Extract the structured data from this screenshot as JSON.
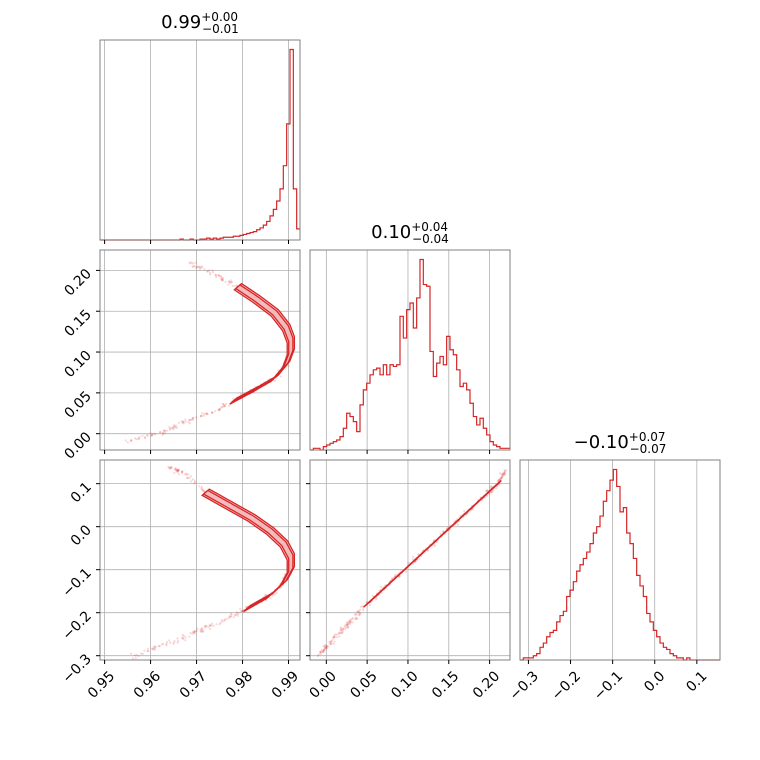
{
  "chart_data": [
    {
      "type": "histogram",
      "parameter_index": 0,
      "title": {
        "value": "0.99",
        "plus": "+0.00",
        "minus": "−0.01"
      },
      "xlim": [
        0.949,
        0.9925
      ],
      "xticks": [
        "0.95",
        "0.96",
        "0.97",
        "0.98",
        "0.99"
      ],
      "xtick_values": [
        0.95,
        0.96,
        0.97,
        0.98,
        0.99
      ],
      "bin_start": 0.949,
      "bin_width": 0.000725,
      "counts": [
        0,
        0,
        0,
        0,
        0,
        0,
        0,
        0,
        0,
        0,
        0,
        0,
        0,
        0,
        0,
        0,
        0,
        0,
        0,
        0,
        0,
        0,
        0,
        0,
        1,
        0,
        0,
        1,
        0,
        0,
        1,
        1,
        2,
        1,
        2,
        1,
        2,
        3,
        3,
        3,
        4,
        4,
        5,
        6,
        7,
        8,
        9,
        11,
        13,
        16,
        20,
        26,
        33,
        42,
        55,
        80,
        125,
        205,
        55,
        12
      ]
    },
    {
      "type": "histogram",
      "parameter_index": 1,
      "title": {
        "value": "0.10",
        "plus": "+0.04",
        "minus": "−0.04"
      },
      "xlim": [
        -0.02,
        0.225
      ],
      "xticks": [
        "0.00",
        "0.05",
        "0.10",
        "0.15",
        "0.20"
      ],
      "xtick_values": [
        0.0,
        0.05,
        0.1,
        0.15,
        0.2
      ],
      "bin_start": -0.02,
      "bin_width": 0.004083,
      "counts": [
        0,
        1,
        1,
        0,
        2,
        3,
        4,
        5,
        6,
        8,
        13,
        22,
        20,
        17,
        11,
        27,
        36,
        40,
        45,
        48,
        49,
        45,
        51,
        45,
        51,
        50,
        51,
        80,
        67,
        84,
        88,
        73,
        91,
        114,
        99,
        98,
        59,
        44,
        52,
        56,
        51,
        68,
        60,
        57,
        48,
        38,
        40,
        36,
        28,
        20,
        15,
        19,
        13,
        9,
        5,
        3,
        2,
        1,
        1,
        1
      ]
    },
    {
      "type": "histogram",
      "parameter_index": 2,
      "title": {
        "value": "−0.10",
        "plus": "+0.07",
        "minus": "−0.07"
      },
      "xlim": [
        -0.32,
        0.155
      ],
      "xticks": [
        "−0.3",
        "−0.2",
        "−0.1",
        "0.0",
        "0.1"
      ],
      "xtick_values": [
        -0.3,
        -0.2,
        -0.1,
        0.0,
        0.1
      ],
      "bin_start": -0.32,
      "bin_width": 0.007917,
      "counts": [
        0,
        1,
        1,
        1,
        2,
        3,
        6,
        8,
        11,
        13,
        14,
        18,
        21,
        23,
        30,
        33,
        37,
        42,
        45,
        48,
        51,
        55,
        60,
        63,
        68,
        75,
        80,
        85,
        90,
        82,
        70,
        72,
        60,
        55,
        48,
        40,
        35,
        30,
        22,
        18,
        14,
        11,
        8,
        6,
        5,
        3,
        2,
        1,
        1,
        0,
        1,
        0,
        0,
        0,
        0,
        0,
        0,
        0,
        0,
        0
      ]
    },
    {
      "type": "scatter",
      "x_parameter_index": 0,
      "y_parameter_index": 1,
      "xlim": [
        0.949,
        0.9925
      ],
      "ylim": [
        -0.02,
        0.225
      ],
      "yticks": [
        "0.00",
        "0.05",
        "0.10",
        "0.15",
        "0.20"
      ],
      "ytick_values": [
        0.0,
        0.05,
        0.1,
        0.15,
        0.2
      ],
      "ridge": [
        [
          0.955,
          -0.01
        ],
        [
          0.962,
          0.0
        ],
        [
          0.968,
          0.015
        ],
        [
          0.974,
          0.028
        ],
        [
          0.978,
          0.04
        ],
        [
          0.983,
          0.055
        ],
        [
          0.987,
          0.068
        ],
        [
          0.9895,
          0.085
        ],
        [
          0.9905,
          0.1
        ],
        [
          0.9905,
          0.115
        ],
        [
          0.9895,
          0.13
        ],
        [
          0.987,
          0.148
        ],
        [
          0.983,
          0.165
        ],
        [
          0.979,
          0.18
        ],
        [
          0.974,
          0.195
        ],
        [
          0.968,
          0.21
        ]
      ]
    },
    {
      "type": "scatter",
      "x_parameter_index": 0,
      "y_parameter_index": 2,
      "xlim": [
        0.949,
        0.9925
      ],
      "ylim": [
        -0.31,
        0.155
      ],
      "yticks": [
        "−0.3",
        "−0.2",
        "−0.1",
        "0.0",
        "0.1"
      ],
      "ytick_values": [
        -0.3,
        -0.2,
        -0.1,
        0.0,
        0.1
      ],
      "xticks": [
        "0.95",
        "0.96",
        "0.97",
        "0.98",
        "0.99"
      ],
      "xtick_values": [
        0.95,
        0.96,
        0.97,
        0.98,
        0.99
      ],
      "ridge": [
        [
          0.956,
          -0.3
        ],
        [
          0.963,
          -0.275
        ],
        [
          0.97,
          -0.245
        ],
        [
          0.976,
          -0.22
        ],
        [
          0.981,
          -0.19
        ],
        [
          0.986,
          -0.16
        ],
        [
          0.989,
          -0.13
        ],
        [
          0.9905,
          -0.1
        ],
        [
          0.9905,
          -0.07
        ],
        [
          0.989,
          -0.04
        ],
        [
          0.986,
          -0.01
        ],
        [
          0.982,
          0.02
        ],
        [
          0.977,
          0.05
        ],
        [
          0.972,
          0.08
        ],
        [
          0.968,
          0.12
        ],
        [
          0.964,
          0.14
        ]
      ]
    },
    {
      "type": "scatter",
      "x_parameter_index": 1,
      "y_parameter_index": 2,
      "xlim": [
        -0.02,
        0.225
      ],
      "ylim": [
        -0.31,
        0.155
      ],
      "xticks": [
        "0.00",
        "0.05",
        "0.10",
        "0.15",
        "0.20"
      ],
      "xtick_values": [
        0.0,
        0.05,
        0.1,
        0.15,
        0.2
      ],
      "ridge": [
        [
          -0.01,
          -0.3
        ],
        [
          0.01,
          -0.26
        ],
        [
          0.03,
          -0.22
        ],
        [
          0.05,
          -0.18
        ],
        [
          0.07,
          -0.145
        ],
        [
          0.09,
          -0.11
        ],
        [
          0.11,
          -0.075
        ],
        [
          0.13,
          -0.04
        ],
        [
          0.15,
          -0.005
        ],
        [
          0.17,
          0.03
        ],
        [
          0.19,
          0.065
        ],
        [
          0.21,
          0.1
        ],
        [
          0.22,
          0.13
        ]
      ]
    }
  ],
  "colors": {
    "series": "#d62728",
    "contour_fill": "#f4b8b8",
    "grid": "#b0b0b0",
    "frame": "#808080"
  }
}
